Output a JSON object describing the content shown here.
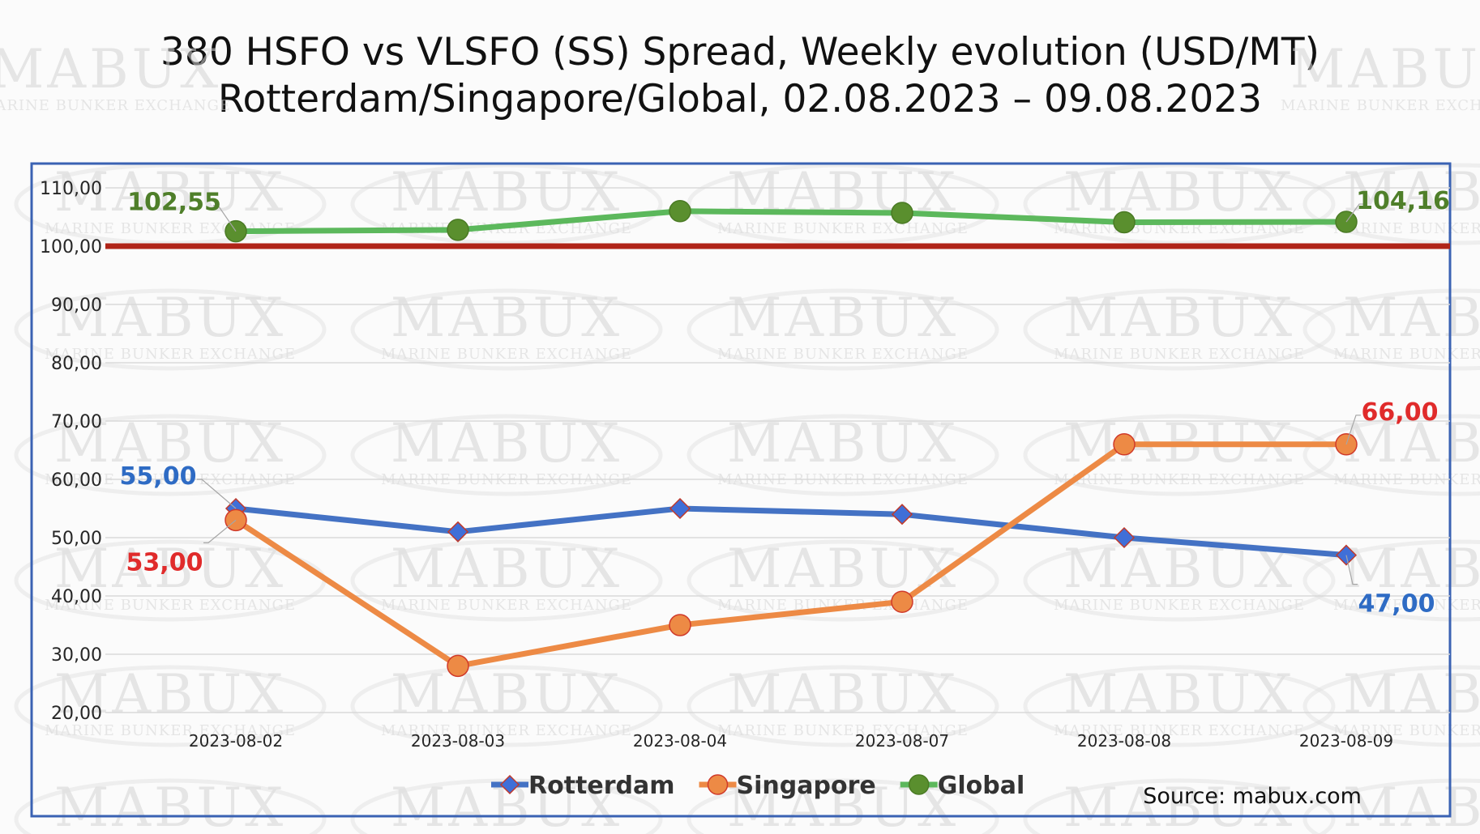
{
  "chart_data": {
    "type": "line",
    "title": "380 HSFO vs VLSFO (SS) Spread, Weekly evolution (USD/MT)",
    "subtitle": "Rotterdam/Singapore/Global, 02.08.2023 – 09.08.2023",
    "categories": [
      "2023-08-02",
      "2023-08-03",
      "2023-08-04",
      "2023-08-07",
      "2023-08-08",
      "2023-08-09"
    ],
    "ylim": [
      20,
      110
    ],
    "yticks": [
      20,
      30,
      40,
      50,
      60,
      70,
      80,
      90,
      100,
      110
    ],
    "ytick_labels": [
      "20,00",
      "30,00",
      "40,00",
      "50,00",
      "60,00",
      "70,00",
      "80,00",
      "90,00",
      "100,00",
      "110,00"
    ],
    "grid": true,
    "reference_line": {
      "value": 100,
      "color": "#b02418"
    },
    "legend_position": "bottom",
    "series": [
      {
        "name": "Rotterdam",
        "values": [
          55,
          51,
          55,
          54,
          50,
          47
        ],
        "color": "#4472c4",
        "marker": "diamond",
        "marker_color": "#3f6fd8",
        "marker_stroke": "#c0392b",
        "labels": [
          {
            "index": 0,
            "text": "55,00",
            "color": "#2e6bc4"
          },
          {
            "index": 5,
            "text": "47,00",
            "color": "#2e6bc4"
          }
        ]
      },
      {
        "name": "Singapore",
        "values": [
          53,
          28,
          35,
          39,
          66,
          66
        ],
        "color": "#ed8a45",
        "marker": "circle",
        "marker_color": "#ed8a45",
        "marker_stroke": "#d03a2a",
        "labels": [
          {
            "index": 0,
            "text": "53,00",
            "color": "#e02b2b"
          },
          {
            "index": 5,
            "text": "66,00",
            "color": "#e02b2b"
          }
        ]
      },
      {
        "name": "Global",
        "values": [
          102.55,
          102.8,
          106.0,
          105.7,
          104.1,
          104.16
        ],
        "color": "#5cb85c",
        "marker": "circle",
        "marker_color": "#5a8f2e",
        "marker_stroke": "#4a7a24",
        "labels": [
          {
            "index": 0,
            "text": "102,55",
            "color": "#4f7f2a"
          },
          {
            "index": 5,
            "text": "104,16",
            "color": "#4f7f2a"
          }
        ]
      }
    ],
    "source": "Source: mabux.com"
  },
  "watermark": {
    "brand": "MABUX",
    "tagline": "MARINE BUNKER EXCHANGE"
  }
}
